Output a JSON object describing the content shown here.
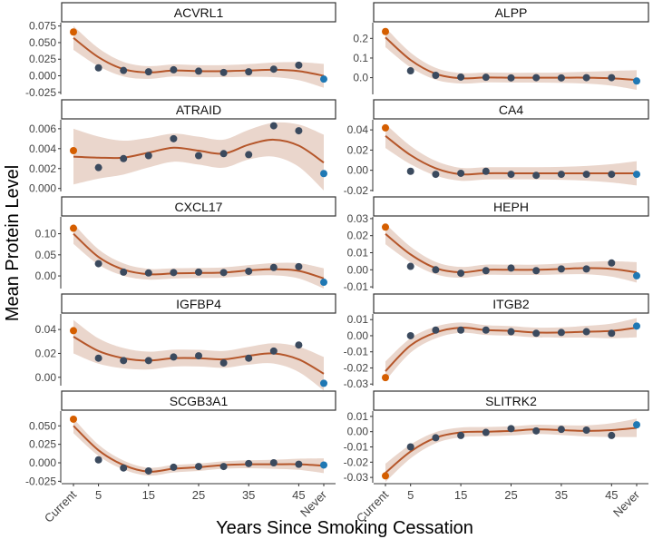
{
  "chart_data": {
    "type": "line",
    "xlabel": "Years Since Smoking Cessation",
    "ylabel": "Mean Protein Level",
    "x": [
      "Current",
      "5",
      "10",
      "15",
      "20",
      "25",
      "30",
      "35",
      "40",
      "45",
      "Never"
    ],
    "x_tick_labels": [
      "Current",
      "5",
      "",
      "15",
      "",
      "25",
      "",
      "35",
      "",
      "45",
      "Never"
    ],
    "colors": {
      "current": "#D55E00",
      "never": "#1F78B4",
      "former": "#3B4A5E",
      "fit": "#B5562A",
      "band": "#EAD6CC"
    },
    "panels": [
      {
        "title": "ACVRL1",
        "ylim": [
          -0.028,
          0.08
        ],
        "yticks": [
          -0.025,
          0,
          0.025,
          0.05,
          0.075
        ],
        "ytick_labels": [
          "-0.025",
          "0.000",
          "0.025",
          "0.050",
          "0.075"
        ],
        "values": [
          0.066,
          0.012,
          0.008,
          0.006,
          0.009,
          0.007,
          0.005,
          0.006,
          0.01,
          0.016,
          -0.005
        ],
        "fit": [
          0.057,
          0.028,
          0.01,
          0.005,
          0.008,
          0.007,
          0.007,
          0.008,
          0.009,
          0.007,
          0.0
        ],
        "band": 0.009
      },
      {
        "title": "ALPP",
        "ylim": [
          -0.085,
          0.28
        ],
        "yticks": [
          0,
          0.1,
          0.2
        ],
        "ytick_labels": [
          "0.0",
          "0.1",
          "0.2"
        ],
        "values": [
          0.235,
          0.035,
          0.012,
          0.003,
          0.002,
          -0.001,
          0.0,
          -0.001,
          0.0,
          0.0,
          -0.017
        ],
        "fit": [
          0.205,
          0.09,
          0.02,
          -0.003,
          0.001,
          0.0,
          0.0,
          0.0,
          0.0,
          -0.003,
          -0.012
        ],
        "band": 0.025
      },
      {
        "title": "ATRAID",
        "ylim": [
          -0.0003,
          0.0069
        ],
        "yticks": [
          0,
          0.002,
          0.004,
          0.006
        ],
        "ytick_labels": [
          "0.000",
          "0.002",
          "0.004",
          "0.006"
        ],
        "values": [
          0.0038,
          0.0021,
          0.003,
          0.0033,
          0.005,
          0.0033,
          0.0035,
          0.0034,
          0.0063,
          0.0058,
          0.0015
        ],
        "fit": [
          0.0032,
          0.0031,
          0.0031,
          0.0036,
          0.0041,
          0.0038,
          0.0035,
          0.0044,
          0.0049,
          0.0043,
          0.0026
        ],
        "band": 0.0014
      },
      {
        "title": "CA4",
        "ylim": [
          -0.021,
          0.05
        ],
        "yticks": [
          -0.02,
          0,
          0.02,
          0.04
        ],
        "ytick_labels": [
          "-0.02",
          "0.00",
          "0.02",
          "0.04"
        ],
        "values": [
          0.042,
          -0.001,
          -0.004,
          -0.003,
          -0.001,
          -0.004,
          -0.005,
          -0.004,
          -0.004,
          -0.004,
          -0.004
        ],
        "fit": [
          0.034,
          0.015,
          0.002,
          -0.004,
          -0.003,
          -0.003,
          -0.003,
          -0.003,
          -0.003,
          -0.003,
          -0.003
        ],
        "band": 0.006
      },
      {
        "title": "CXCL17",
        "ylim": [
          -0.03,
          0.14
        ],
        "yticks": [
          0,
          0.05,
          0.1
        ],
        "ytick_labels": [
          "0.00",
          "0.05",
          "0.10"
        ],
        "values": [
          0.113,
          0.029,
          0.009,
          0.007,
          0.008,
          0.009,
          0.008,
          0.011,
          0.02,
          0.022,
          -0.015
        ],
        "fit": [
          0.1,
          0.045,
          0.015,
          0.004,
          0.006,
          0.007,
          0.008,
          0.013,
          0.016,
          0.012,
          -0.006
        ],
        "band": 0.012
      },
      {
        "title": "HEPH",
        "ylim": [
          -0.011,
          0.031
        ],
        "yticks": [
          -0.01,
          0,
          0.01,
          0.02,
          0.03
        ],
        "ytick_labels": [
          "-0.01",
          "0.00",
          "0.01",
          "0.02",
          "0.03"
        ],
        "values": [
          0.025,
          0.002,
          0.0,
          -0.002,
          -0.0005,
          0.001,
          -0.0005,
          0.0005,
          0.0005,
          0.004,
          -0.0035
        ],
        "fit": [
          0.021,
          0.009,
          0.001,
          -0.0015,
          0.0,
          0.0,
          0.0,
          0.0005,
          0.001,
          0.0005,
          -0.0015
        ],
        "band": 0.003
      },
      {
        "title": "IGFBP4",
        "ylim": [
          -0.007,
          0.053
        ],
        "yticks": [
          0,
          0.02,
          0.04
        ],
        "ytick_labels": [
          "0.00",
          "0.02",
          "0.04"
        ],
        "values": [
          0.039,
          0.016,
          0.014,
          0.014,
          0.017,
          0.018,
          0.012,
          0.016,
          0.022,
          0.027,
          -0.005
        ],
        "fit": [
          0.034,
          0.022,
          0.016,
          0.014,
          0.016,
          0.016,
          0.015,
          0.018,
          0.02,
          0.015,
          0.003
        ],
        "band": 0.007
      },
      {
        "title": "ITGB2",
        "ylim": [
          -0.031,
          0.0135
        ],
        "yticks": [
          -0.03,
          -0.02,
          -0.01,
          0,
          0.01
        ],
        "ytick_labels": [
          "-0.03",
          "-0.02",
          "-0.01",
          "0.00",
          "0.01"
        ],
        "values": [
          -0.026,
          0.0,
          0.0035,
          0.0035,
          0.0035,
          0.0025,
          0.0015,
          0.002,
          0.0025,
          0.0015,
          0.006
        ],
        "fit": [
          -0.022,
          -0.006,
          0.002,
          0.005,
          0.0035,
          0.003,
          0.002,
          0.002,
          0.0025,
          0.003,
          0.005
        ],
        "band": 0.003
      },
      {
        "title": "SCGB3A1",
        "ylim": [
          -0.027,
          0.07
        ],
        "yticks": [
          -0.025,
          0,
          0.025,
          0.05
        ],
        "ytick_labels": [
          "-0.025",
          "0.000",
          "0.025",
          "0.050"
        ],
        "values": [
          0.059,
          0.004,
          -0.007,
          -0.011,
          -0.006,
          -0.005,
          -0.005,
          -0.001,
          0.0,
          -0.002,
          -0.003
        ],
        "fit": [
          0.05,
          0.017,
          -0.003,
          -0.012,
          -0.008,
          -0.006,
          -0.003,
          -0.002,
          -0.002,
          -0.002,
          -0.004
        ],
        "band": 0.005
      },
      {
        "title": "SLITRK2",
        "ylim": [
          -0.0335,
          0.0135
        ],
        "yticks": [
          -0.03,
          -0.02,
          -0.01,
          0,
          0.01
        ],
        "ytick_labels": [
          "-0.03",
          "-0.02",
          "-0.01",
          "0.00",
          "0.01"
        ],
        "values": [
          -0.029,
          -0.01,
          -0.004,
          -0.0025,
          -0.0005,
          0.002,
          0.0005,
          0.0015,
          0.001,
          -0.0025,
          0.0045
        ],
        "fit": [
          -0.027,
          -0.013,
          -0.004,
          -0.0005,
          0.0,
          0.0005,
          0.0015,
          0.001,
          0.0005,
          0.001,
          0.0025
        ],
        "band": 0.003
      }
    ]
  }
}
